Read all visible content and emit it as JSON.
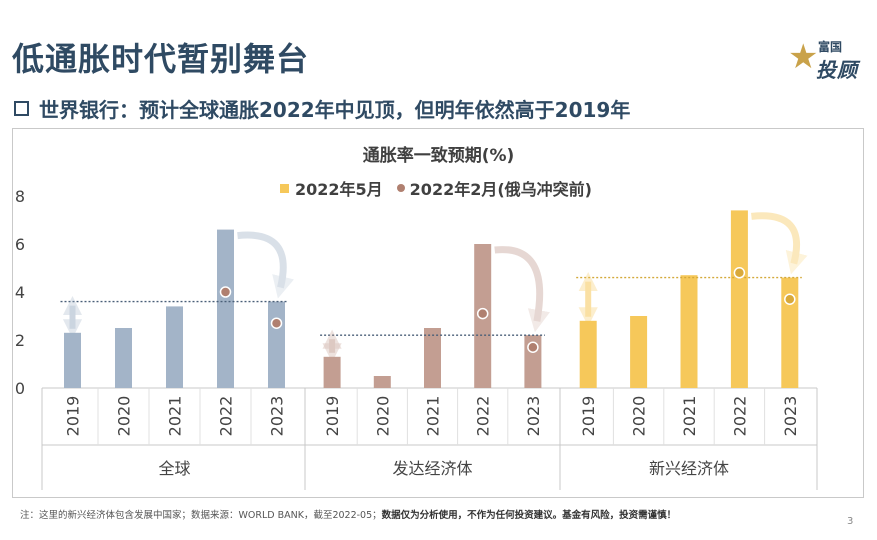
{
  "title": "低通胀时代暂别舞台",
  "logo": {
    "top": "富国",
    "bottom": "投顾",
    "star_icon": "star-icon"
  },
  "subtitle": "世界银行：预计全球通胀2022年中见顶，但明年依然高于2019年",
  "footnote_plain": "注：这里的新兴经济体包含发展中国家；数据来源：WORLD BANK，截至2022-05；",
  "footnote_bold": "数据仅为分析使用，不作为任何投资建议。基金有风险，投资需谨慎！",
  "page_number": "3",
  "colors": {
    "global": "#a3b4c8",
    "advanced": "#c39e92",
    "emerging": "#f6c85a",
    "prior_dot": "#b08070"
  },
  "chart_data": {
    "type": "bar",
    "title": "通胀率一致预期(%)",
    "legend": [
      "2022年5月",
      "2022年2月(俄乌冲突前)"
    ],
    "legend_placement": "top",
    "ylim": [
      0,
      8
    ],
    "yticks": [
      "0",
      "2",
      "4",
      "6",
      "8"
    ],
    "groups": [
      {
        "name": "全球",
        "categories": [
          "2019",
          "2020",
          "2021",
          "2022",
          "2023"
        ],
        "may_2022": [
          2.3,
          2.5,
          3.4,
          6.6,
          3.6
        ],
        "feb_2022": [
          null,
          null,
          null,
          4.0,
          2.7
        ],
        "reference_line": 3.6
      },
      {
        "name": "发达经济体",
        "categories": [
          "2019",
          "2020",
          "2021",
          "2022",
          "2023"
        ],
        "may_2022": [
          1.3,
          0.5,
          2.5,
          6.0,
          2.2
        ],
        "feb_2022": [
          null,
          null,
          null,
          3.1,
          1.7
        ],
        "reference_line": 2.2
      },
      {
        "name": "新兴经济体",
        "categories": [
          "2019",
          "2020",
          "2021",
          "2022",
          "2023"
        ],
        "may_2022": [
          2.8,
          3.0,
          4.7,
          7.4,
          4.6
        ],
        "feb_2022": [
          null,
          null,
          null,
          4.8,
          3.7
        ],
        "reference_line": 4.6
      }
    ]
  }
}
